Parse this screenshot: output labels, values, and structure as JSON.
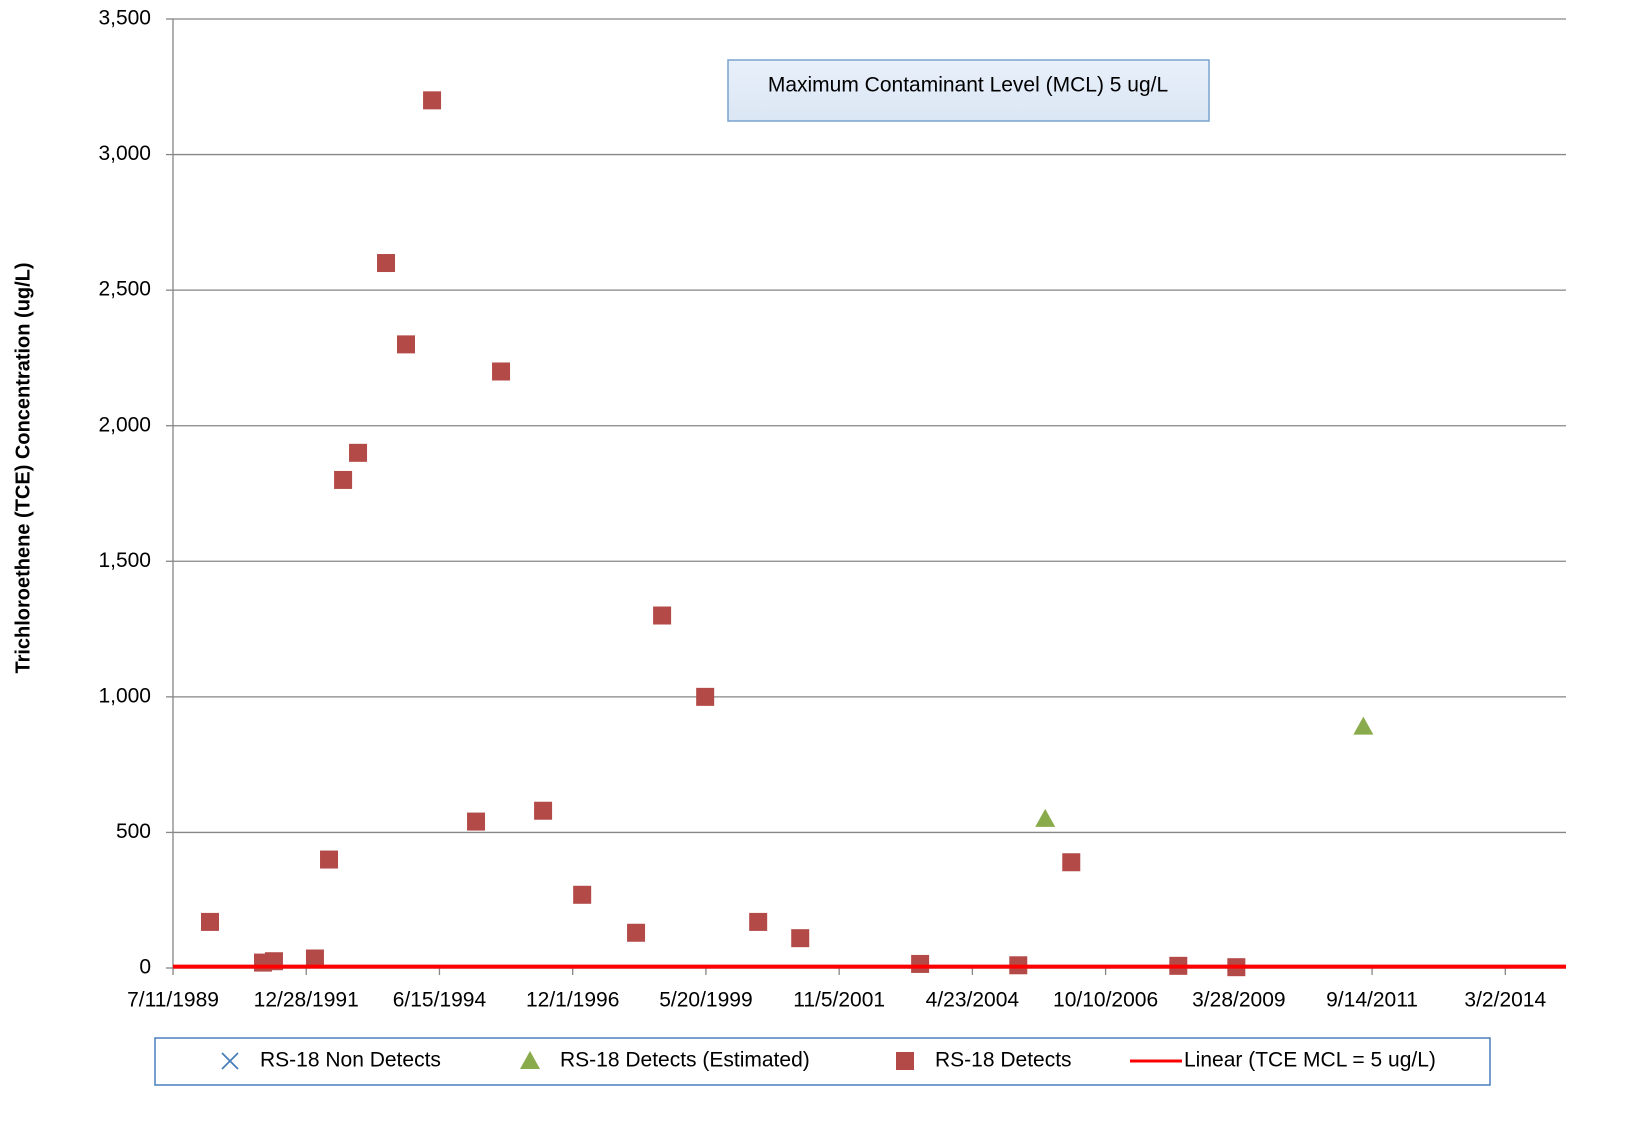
{
  "chart_data": {
    "type": "scatter",
    "y_label": "Trichloroethene (TCE) Concentration (ug/L)",
    "annotation": "Maximum Contaminant Level (MCL) 5 ug/L",
    "xlim": [
      32700,
      42110
    ],
    "xticks": [
      {
        "value": 32700,
        "label": "7/11/1989"
      },
      {
        "value": 33600,
        "label": "12/28/1991"
      },
      {
        "value": 34500,
        "label": "6/15/1994"
      },
      {
        "value": 35400,
        "label": "12/1/1996"
      },
      {
        "value": 36300,
        "label": "5/20/1999"
      },
      {
        "value": 37200,
        "label": "11/5/2001"
      },
      {
        "value": 38100,
        "label": "4/23/2004"
      },
      {
        "value": 39000,
        "label": "10/10/2006"
      },
      {
        "value": 39900,
        "label": "3/28/2009"
      },
      {
        "value": 40800,
        "label": "9/14/2011"
      },
      {
        "value": 41700,
        "label": "3/2/2014"
      }
    ],
    "ylim": [
      0,
      3500
    ],
    "yticks": [
      0,
      500,
      {
        "value": 1000,
        "label": "1,000"
      },
      {
        "value": 1500,
        "label": "1,500"
      },
      {
        "value": 2000,
        "label": "2,000"
      },
      {
        "value": 2500,
        "label": "2,500"
      },
      {
        "value": 3000,
        "label": "3,000"
      },
      {
        "value": 3500,
        "label": "3,500"
      }
    ],
    "grid": true,
    "legend": "bottom",
    "series": [
      {
        "name": "RS-18 Non Detects",
        "color": "#4a7ebb",
        "marker": "x",
        "x": [],
        "values": []
      },
      {
        "name": "RS-18 Detects (Estimated)",
        "color": "#8aab4c",
        "marker": "triangle",
        "x": [
          38592,
          40741
        ],
        "values": [
          550,
          890
        ]
      },
      {
        "name": "RS-18 Detects",
        "color": "#b34a47",
        "marker": "square",
        "x": [
          32950,
          33308,
          33382,
          33659,
          33754,
          33849,
          33950,
          34139,
          34274,
          34450,
          34747,
          34916,
          35200,
          35464,
          35828,
          36004,
          36295,
          36653,
          36937,
          37747,
          38410,
          38768,
          39491,
          39883
        ],
        "values": [
          170,
          20,
          25,
          35,
          400,
          1800,
          1900,
          2600,
          2300,
          3200,
          540,
          2200,
          580,
          270,
          130,
          1300,
          1000,
          170,
          110,
          15,
          10,
          390,
          8,
          3
        ]
      },
      {
        "name": "Linear (TCE MCL = 5 ug/L)",
        "color": "#ff0000",
        "marker": "line",
        "x": [
          32700,
          42110
        ],
        "values": [
          5,
          5
        ]
      }
    ]
  }
}
